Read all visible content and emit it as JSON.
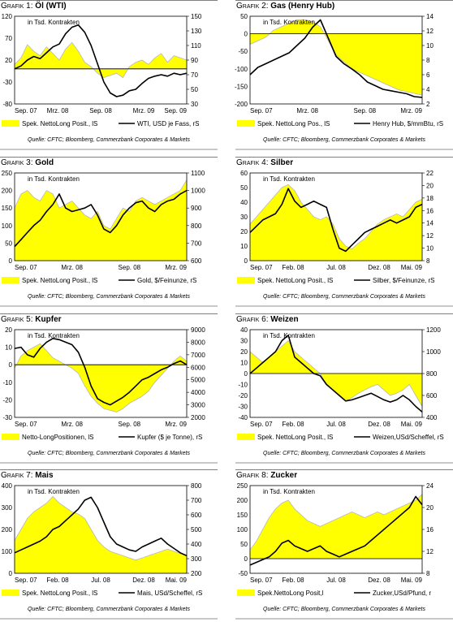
{
  "source_label": "Quelle: CFTC; Bloomberg, Commerzbank Corporates & Markets",
  "annotation": "in Tsd. Kontrakten",
  "colors": {
    "fill": "#ffff00",
    "fill_edge": "#b7b7b7",
    "line": "#000000"
  },
  "panels": [
    {
      "grafik_label": "Grafik 1:",
      "name": "Öl (WTI)",
      "chart_data": {
        "type": "area",
        "x_tick_labels": [
          "Sep. 07",
          "Mrz. 08",
          "Sep. 08",
          "Mrz. 09",
          "Sep. 09"
        ],
        "ylim_left": [
          -80,
          120
        ],
        "yticks_left": [
          120,
          70,
          20,
          -30,
          -80
        ],
        "ylim_right": [
          30,
          150
        ],
        "yticks_right": [
          150,
          130,
          110,
          90,
          70,
          50,
          30
        ],
        "series": [
          {
            "name": "Spek. NettoLong Posit., lS",
            "axis": "left",
            "kind": "area",
            "values": [
              10,
              25,
              55,
              40,
              30,
              50,
              35,
              20,
              45,
              60,
              40,
              15,
              5,
              -10,
              -20,
              -15,
              -10,
              -20,
              5,
              15,
              20,
              10,
              25,
              35,
              15,
              30,
              25,
              20
            ]
          },
          {
            "name": "WTI, USD je Fass, rS",
            "axis": "right",
            "kind": "line",
            "values": [
              78,
              82,
              90,
              95,
              92,
              100,
              108,
              112,
              126,
              135,
              138,
              128,
              110,
              85,
              60,
              45,
              40,
              42,
              48,
              50,
              58,
              65,
              68,
              70,
              68,
              72,
              70,
              72
            ]
          }
        ]
      }
    },
    {
      "grafik_label": "Grafik 2:",
      "name": "Gas (Henry Hub)",
      "chart_data": {
        "type": "area",
        "x_tick_labels": [
          "Sep. 07",
          "Mrz. 08",
          "Sep. 08",
          "Mrz. 09"
        ],
        "ylim_left": [
          -200,
          50
        ],
        "yticks_left": [
          50,
          0,
          -50,
          -100,
          -150,
          -200
        ],
        "ylim_right": [
          2,
          14
        ],
        "yticks_right": [
          14,
          12,
          10,
          8,
          6,
          4,
          2
        ],
        "series": [
          {
            "name": "Spek. NettoLong Pos., lS",
            "axis": "left",
            "kind": "area",
            "values": [
              -30,
              -20,
              -10,
              10,
              20,
              30,
              40,
              40,
              35,
              20,
              -20,
              -60,
              -80,
              -100,
              -110,
              -120,
              -130,
              -140,
              -150,
              -160,
              -165,
              -170,
              -175
            ]
          },
          {
            "name": "Henry Hub, $/mmBtu, rS",
            "axis": "right",
            "kind": "line",
            "values": [
              6.0,
              7.0,
              7.5,
              8.0,
              8.5,
              9.0,
              10.0,
              11.0,
              12.5,
              13.5,
              11.0,
              8.5,
              7.5,
              6.8,
              6.0,
              5.0,
              4.5,
              4.0,
              3.8,
              3.6,
              3.4,
              3.0,
              2.9
            ]
          }
        ]
      }
    },
    {
      "grafik_label": "Grafik 3:",
      "name": "Gold",
      "chart_data": {
        "type": "area",
        "x_tick_labels": [
          "Sep. 07",
          "Mrz. 08",
          "Sep. 08",
          "Mrz. 09"
        ],
        "ylim_left": [
          0,
          250
        ],
        "yticks_left": [
          250,
          200,
          150,
          100,
          50,
          0
        ],
        "ylim_right": [
          600,
          1100
        ],
        "yticks_right": [
          1100,
          1000,
          900,
          800,
          700,
          600
        ],
        "series": [
          {
            "name": "Spek. NettoLong Posit., lS",
            "axis": "left",
            "kind": "area",
            "values": [
              150,
              190,
              200,
              180,
              170,
              200,
              190,
              150,
              160,
              170,
              150,
              130,
              120,
              140,
              100,
              90,
              120,
              150,
              140,
              170,
              180,
              170,
              160,
              170,
              180,
              190,
              200,
              230
            ]
          },
          {
            "name": "Gold, $/Feinunze, rS",
            "axis": "right",
            "kind": "line",
            "values": [
              680,
              720,
              760,
              800,
              830,
              880,
              920,
              980,
              900,
              880,
              890,
              900,
              920,
              860,
              780,
              760,
              800,
              860,
              900,
              930,
              940,
              900,
              880,
              920,
              940,
              950,
              980,
              1000
            ]
          }
        ]
      }
    },
    {
      "grafik_label": "Grafik 4:",
      "name": "Silber",
      "chart_data": {
        "type": "area",
        "x_tick_labels": [
          "Sep. 07",
          "Feb. 08",
          "Jul. 08",
          "Dez. 08",
          "Mai. 09"
        ],
        "ylim_left": [
          0,
          60
        ],
        "yticks_left": [
          60,
          50,
          40,
          30,
          20,
          10,
          0
        ],
        "ylim_right": [
          8,
          22
        ],
        "yticks_right": [
          22,
          20,
          18,
          16,
          14,
          12,
          10,
          8
        ],
        "series": [
          {
            "name": "Spek. NettoLong Posit., lS",
            "axis": "left",
            "kind": "area",
            "values": [
              25,
              30,
              35,
              40,
              45,
              50,
              52,
              48,
              40,
              35,
              30,
              28,
              30,
              25,
              15,
              10,
              8,
              12,
              15,
              20,
              25,
              28,
              30,
              32,
              30,
              35,
              40,
              42
            ]
          },
          {
            "name": "Silber, $/Feinunze, rS",
            "axis": "right",
            "kind": "line",
            "values": [
              12.5,
              13.5,
              14.5,
              15.0,
              15.5,
              17.0,
              19.5,
              17.5,
              16.5,
              17.0,
              17.5,
              17.0,
              16.5,
              13.0,
              10.0,
              9.5,
              10.5,
              11.5,
              12.5,
              13.0,
              13.5,
              14.0,
              14.5,
              14.0,
              14.5,
              15.0,
              16.5,
              17.0
            ]
          }
        ]
      }
    },
    {
      "grafik_label": "Grafik 5:",
      "name": "Kupfer",
      "chart_data": {
        "type": "area",
        "x_tick_labels": [
          "Sep. 07",
          "Mrz. 08",
          "Sep. 08",
          "Mrz. 09"
        ],
        "ylim_left": [
          -30,
          20
        ],
        "yticks_left": [
          20,
          10,
          0,
          -10,
          -20,
          -30
        ],
        "ylim_right": [
          2000,
          9000
        ],
        "yticks_right": [
          9000,
          8000,
          7000,
          6000,
          5000,
          4000,
          3000,
          2000
        ],
        "series": [
          {
            "name": "Netto-LongPositionen, lS",
            "axis": "left",
            "kind": "area",
            "values": [
              -2,
              5,
              8,
              10,
              12,
              8,
              4,
              2,
              0,
              -2,
              -5,
              -12,
              -18,
              -22,
              -25,
              -26,
              -27,
              -25,
              -22,
              -20,
              -18,
              -15,
              -10,
              -6,
              -2,
              2,
              5,
              2
            ]
          },
          {
            "name": "Kupfer ($ je Tonne), rS",
            "axis": "right",
            "kind": "line",
            "values": [
              7500,
              7600,
              7000,
              6800,
              7500,
              8000,
              8300,
              8200,
              8000,
              7800,
              7200,
              6000,
              4500,
              3500,
              3200,
              3000,
              3300,
              3600,
              4000,
              4500,
              5000,
              5200,
              5500,
              5800,
              6000,
              6300,
              6500,
              6200
            ]
          }
        ]
      }
    },
    {
      "grafik_label": "Grafik 6:",
      "name": "Weizen",
      "chart_data": {
        "type": "area",
        "x_tick_labels": [
          "Sep. 07",
          "Feb. 08",
          "Jul. 08",
          "Dez. 08",
          "Mai. 09"
        ],
        "ylim_left": [
          -40,
          40
        ],
        "yticks_left": [
          40,
          30,
          20,
          10,
          0,
          -10,
          -20,
          -30,
          -40
        ],
        "ylim_right": [
          400,
          1200
        ],
        "yticks_right": [
          1200,
          1000,
          800,
          600,
          400
        ],
        "series": [
          {
            "name": "Spek. NettoLong Posit., lS",
            "axis": "left",
            "kind": "area",
            "values": [
              20,
              15,
              10,
              15,
              20,
              25,
              30,
              20,
              15,
              10,
              5,
              0,
              -10,
              -15,
              -20,
              -25,
              -22,
              -18,
              -15,
              -12,
              -10,
              -15,
              -20,
              -18,
              -15,
              -10,
              -20,
              -30
            ]
          },
          {
            "name": "Weizen,USd/Scheffel, rS",
            "axis": "right",
            "kind": "line",
            "values": [
              800,
              850,
              900,
              950,
              1000,
              1100,
              1150,
              950,
              900,
              850,
              800,
              780,
              700,
              650,
              600,
              550,
              560,
              580,
              600,
              620,
              590,
              560,
              540,
              560,
              600,
              560,
              500,
              450
            ]
          }
        ]
      }
    },
    {
      "grafik_label": "Grafik 7:",
      "name": "Mais",
      "chart_data": {
        "type": "area",
        "x_tick_labels": [
          "Sep. 07",
          "Feb. 08",
          "Jul. 08",
          "Dez. 08",
          "Mai. 09"
        ],
        "ylim_left": [
          0,
          400
        ],
        "yticks_left": [
          400,
          300,
          200,
          100,
          0
        ],
        "ylim_right": [
          200,
          800
        ],
        "yticks_right": [
          800,
          700,
          600,
          500,
          400,
          300,
          200
        ],
        "series": [
          {
            "name": "Spek. NettoLong Posit., lS",
            "axis": "left",
            "kind": "area",
            "values": [
              150,
              200,
              250,
              280,
              300,
              320,
              350,
              320,
              300,
              280,
              270,
              250,
              200,
              150,
              120,
              100,
              90,
              80,
              70,
              60,
              70,
              80,
              90,
              100,
              110,
              100,
              90,
              80
            ]
          },
          {
            "name": "Mais, USd/Scheffel, rS",
            "axis": "right",
            "kind": "line",
            "values": [
              340,
              360,
              380,
              400,
              420,
              450,
              500,
              520,
              560,
              600,
              640,
              700,
              720,
              650,
              550,
              450,
              400,
              380,
              360,
              350,
              380,
              400,
              420,
              440,
              400,
              370,
              340,
              320
            ]
          }
        ]
      }
    },
    {
      "grafik_label": "Grafik 8:",
      "name": "Zucker",
      "chart_data": {
        "type": "area",
        "x_tick_labels": [
          "Sep. 07",
          "Feb. 08",
          "Jul. 08",
          "Dez. 08",
          "Mai. 09"
        ],
        "ylim_left": [
          -50,
          250
        ],
        "yticks_left": [
          250,
          200,
          150,
          100,
          50,
          0,
          -50
        ],
        "ylim_right": [
          8,
          24
        ],
        "yticks_right": [
          24,
          20,
          16,
          12,
          8
        ],
        "series": [
          {
            "name": "Spek.NettoLong Posit,l",
            "axis": "left",
            "kind": "area",
            "values": [
              30,
              60,
              100,
              140,
              170,
              190,
              200,
              170,
              150,
              130,
              120,
              110,
              120,
              130,
              140,
              150,
              160,
              150,
              140,
              150,
              160,
              150,
              160,
              170,
              180,
              190,
              200,
              220
            ]
          },
          {
            "name": "Zucker,USd/Pfund, r",
            "axis": "right",
            "kind": "line",
            "values": [
              9.5,
              10.0,
              10.5,
              11.0,
              12.0,
              13.5,
              14.0,
              13.0,
              12.5,
              12.0,
              12.5,
              13.0,
              12.0,
              11.5,
              11.0,
              11.5,
              12.0,
              12.5,
              13.0,
              14.0,
              15.0,
              16.0,
              17.0,
              18.0,
              19.0,
              20.0,
              22.0,
              20.5
            ]
          }
        ]
      }
    }
  ]
}
